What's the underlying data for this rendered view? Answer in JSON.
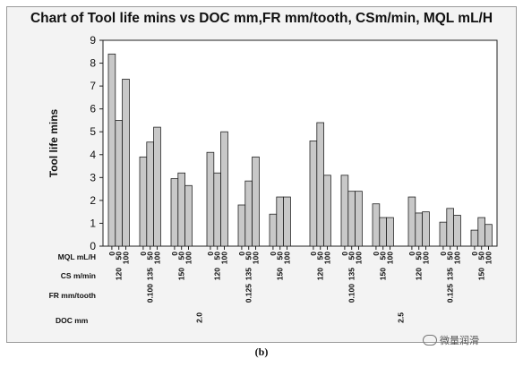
{
  "chart_data": {
    "type": "bar",
    "title": "Chart of Tool life mins vs DOC mm,FR mm/tooth, CSm/min, MQL mL/H",
    "ylabel": "Tool life mins",
    "ylim": [
      0,
      9
    ],
    "yticks": [
      "0",
      "1",
      "2",
      "3",
      "4",
      "5",
      "6",
      "7",
      "8",
      "9"
    ],
    "grid": false,
    "row_labels": {
      "mql": "MQL  mL/H",
      "cs": "CS m/min",
      "fr": "FR mm/tooth",
      "doc": "DOC mm"
    },
    "mql_levels": [
      "0",
      "50",
      "100"
    ],
    "doc_levels": [
      "2.0",
      "2.5"
    ],
    "fr_levels": [
      "0.100",
      "0.125"
    ],
    "cs_levels": [
      "120",
      "135",
      "150"
    ],
    "groups": [
      {
        "doc": "2.0",
        "fr": "0.100",
        "cs": "120",
        "values": [
          8.4,
          5.5,
          7.3
        ]
      },
      {
        "doc": "2.0",
        "fr": "0.100",
        "cs": "135",
        "values": [
          3.9,
          4.55,
          5.2
        ]
      },
      {
        "doc": "2.0",
        "fr": "0.100",
        "cs": "150",
        "values": [
          2.95,
          3.2,
          2.65
        ]
      },
      {
        "doc": "2.0",
        "fr": "0.125",
        "cs": "120",
        "values": [
          4.1,
          3.2,
          5.0
        ]
      },
      {
        "doc": "2.0",
        "fr": "0.125",
        "cs": "135",
        "values": [
          1.8,
          2.85,
          3.9
        ]
      },
      {
        "doc": "2.0",
        "fr": "0.125",
        "cs": "150",
        "values": [
          1.4,
          2.15,
          2.15
        ]
      },
      {
        "doc": "2.5",
        "fr": "0.100",
        "cs": "120",
        "values": [
          4.6,
          5.4,
          3.1
        ]
      },
      {
        "doc": "2.5",
        "fr": "0.100",
        "cs": "135",
        "values": [
          3.1,
          2.4,
          2.4
        ]
      },
      {
        "doc": "2.5",
        "fr": "0.100",
        "cs": "150",
        "values": [
          1.85,
          1.25,
          1.25
        ]
      },
      {
        "doc": "2.5",
        "fr": "0.125",
        "cs": "120",
        "values": [
          2.15,
          1.45,
          1.5
        ]
      },
      {
        "doc": "2.5",
        "fr": "0.125",
        "cs": "135",
        "values": [
          1.05,
          1.65,
          1.35
        ]
      },
      {
        "doc": "2.5",
        "fr": "0.125",
        "cs": "150",
        "values": [
          0.7,
          1.25,
          0.95
        ]
      }
    ],
    "bar_color": "#c8c8c8",
    "bar_stroke": "#222222"
  },
  "caption": "(b)",
  "watermark": "微量润滑"
}
